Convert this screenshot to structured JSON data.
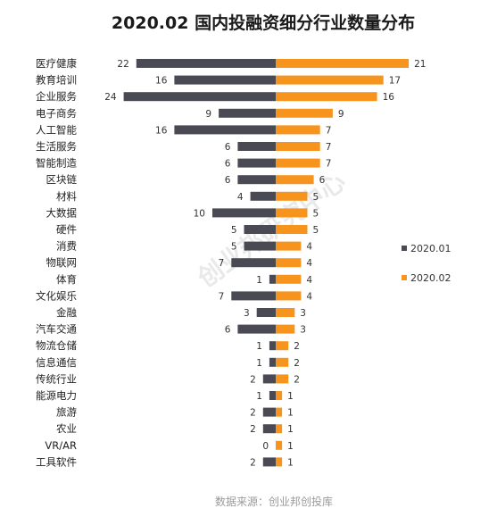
{
  "chart_data": {
    "type": "bar",
    "title": "2020.02 国内投融资细分行业数量分布",
    "categories": [
      "医疗健康",
      "教育培训",
      "企业服务",
      "电子商务",
      "人工智能",
      "生活服务",
      "智能制造",
      "区块链",
      "材料",
      "大数据",
      "硬件",
      "消费",
      "物联网",
      "体育",
      "文化娱乐",
      "金融",
      "汽车交通",
      "物流仓储",
      "信息通信",
      "传统行业",
      "能源电力",
      "旅游",
      "农业",
      "VR/AR",
      "工具软件"
    ],
    "series": [
      {
        "name": "2020.01",
        "color": "#4a4a55",
        "values": [
          22,
          16,
          24,
          9,
          16,
          6,
          6,
          6,
          4,
          10,
          5,
          5,
          7,
          1,
          7,
          3,
          6,
          1,
          1,
          2,
          1,
          2,
          2,
          0,
          2
        ]
      },
      {
        "name": "2020.02",
        "color": "#f7941d",
        "values": [
          21,
          17,
          16,
          9,
          7,
          7,
          7,
          6,
          5,
          5,
          5,
          4,
          4,
          4,
          4,
          3,
          3,
          2,
          2,
          2,
          1,
          1,
          1,
          1,
          1
        ]
      }
    ],
    "legend_position": "right",
    "grid": false
  },
  "watermark": "创业邦研究中心",
  "source": "数据来源：创业邦创投库"
}
